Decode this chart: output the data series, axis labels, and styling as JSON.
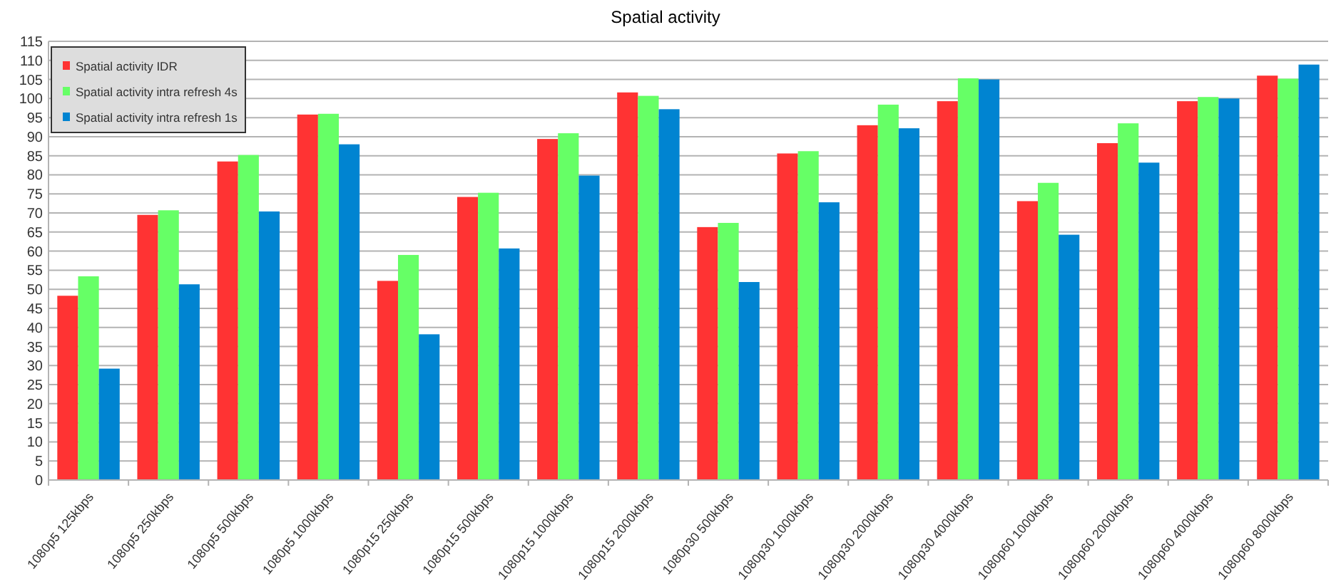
{
  "chart_data": {
    "type": "bar",
    "title": "Spatial activity",
    "categories": [
      "1080p5 125kbps",
      "1080p5 250kbps",
      "1080p5 500kbps",
      "1080p5 1000kbps",
      "1080p15 250kbps",
      "1080p15 500kbps",
      "1080p15 1000kbps",
      "1080p15 2000kbps",
      "1080p30 500kbps",
      "1080p30 1000kbps",
      "1080p30 2000kbps",
      "1080p30 4000kbps",
      "1080p60 1000kbps",
      "1080p60 2000kbps",
      "1080p60 4000kbps",
      "1080p60 8000kbps"
    ],
    "series": [
      {
        "name": "Spatial activity IDR",
        "color": "#ff3333",
        "values": [
          48.3,
          69.5,
          83.5,
          95.8,
          52.2,
          74.2,
          89.4,
          101.6,
          66.3,
          85.6,
          93,
          99.3,
          73.1,
          88.3,
          99.3,
          106
        ]
      },
      {
        "name": "Spatial activity intra refresh 4s",
        "color": "#66ff66",
        "values": [
          53.4,
          70.7,
          85.2,
          96,
          59,
          75.3,
          90.9,
          100.7,
          67.4,
          86.2,
          98.4,
          105.3,
          77.9,
          93.5,
          100.4,
          105.2
        ]
      },
      {
        "name": "Spatial activity intra refresh 1s",
        "color": "#0084d1",
        "values": [
          29.2,
          51.3,
          70.4,
          88,
          38.2,
          60.7,
          79.8,
          97.2,
          51.9,
          72.8,
          92.2,
          105,
          64.3,
          83.2,
          100,
          108.9
        ]
      }
    ],
    "ylim": [
      0,
      115
    ],
    "yticks": [
      0,
      5,
      10,
      15,
      20,
      25,
      30,
      35,
      40,
      45,
      50,
      55,
      60,
      65,
      70,
      75,
      80,
      85,
      90,
      95,
      100,
      105,
      110,
      115
    ],
    "grid": "y",
    "legend": "top left"
  }
}
